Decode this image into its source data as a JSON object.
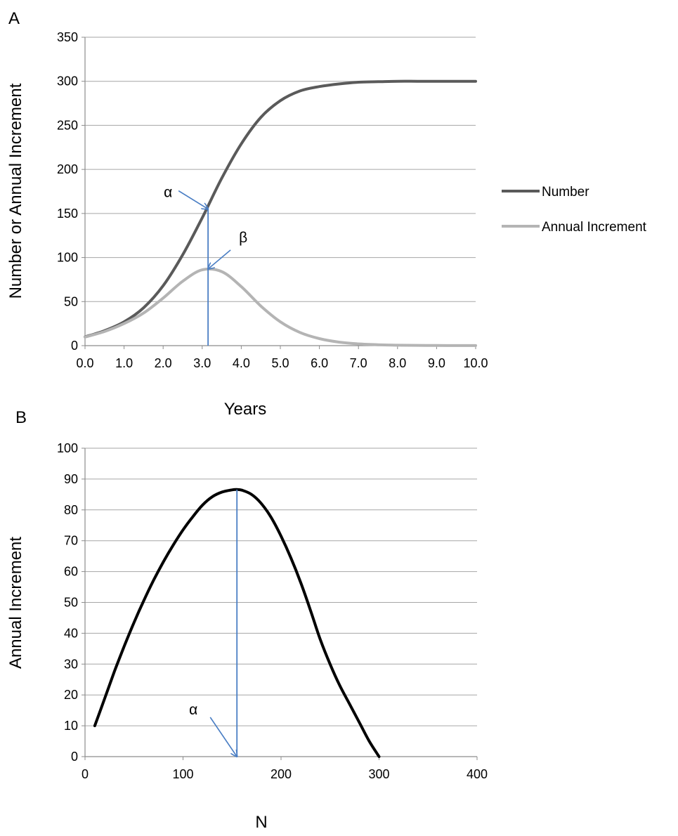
{
  "figure": {
    "panel_a_label": "A",
    "panel_b_label": "B"
  },
  "chart_data": [
    {
      "type": "line",
      "panel": "A",
      "xlabel": "Years",
      "ylabel": "Number or Annual Increment",
      "xlim": [
        0,
        10
      ],
      "ylim": [
        0,
        350
      ],
      "x_ticks": [
        "0.0",
        "1.0",
        "2.0",
        "3.0",
        "4.0",
        "5.0",
        "6.0",
        "7.0",
        "8.0",
        "9.0",
        "10.0"
      ],
      "y_ticks": [
        "0",
        "50",
        "100",
        "150",
        "200",
        "250",
        "300",
        "350"
      ],
      "grid": "horizontal",
      "legend_position": "right",
      "series": [
        {
          "name": "Number",
          "color": "#5a5a5a",
          "x": [
            0,
            0.5,
            1,
            1.5,
            2,
            2.5,
            3,
            3.5,
            4,
            4.5,
            5,
            5.5,
            6,
            6.5,
            7,
            7.5,
            8,
            8.5,
            9,
            9.5,
            10
          ],
          "y": [
            10,
            17,
            27,
            43,
            68,
            103,
            145,
            190,
            229,
            259,
            278,
            289,
            294,
            297,
            299,
            299.5,
            300,
            300,
            300,
            300,
            300
          ]
        },
        {
          "name": "Annual Increment",
          "color": "#b4b4b4",
          "x": [
            0,
            0.5,
            1,
            1.5,
            2,
            2.5,
            3,
            3.5,
            4,
            4.5,
            5,
            5.5,
            6,
            6.5,
            7,
            7.5,
            8,
            8.5,
            9,
            9.5,
            10
          ],
          "y": [
            9.7,
            16,
            25,
            37,
            54,
            73,
            86,
            84,
            67,
            45,
            27,
            15,
            8,
            4,
            2,
            1,
            0.5,
            0.3,
            0.2,
            0.1,
            0.1
          ]
        }
      ],
      "annotations": [
        {
          "label": "α",
          "x": 3.15,
          "y": 155
        },
        {
          "label": "β",
          "x": 3.15,
          "y": 87
        }
      ],
      "vertical_marker": {
        "x": 3.15,
        "y_from": 0,
        "y_to": 155,
        "color": "#4a7ec4"
      }
    },
    {
      "type": "line",
      "panel": "B",
      "xlabel": "N",
      "ylabel": "Annual Increment",
      "xlim": [
        0,
        400
      ],
      "ylim": [
        0,
        100
      ],
      "x_ticks": [
        "0",
        "100",
        "200",
        "300",
        "400"
      ],
      "y_ticks": [
        "0",
        "10",
        "20",
        "30",
        "40",
        "50",
        "60",
        "70",
        "80",
        "90",
        "100"
      ],
      "grid": "horizontal",
      "series": [
        {
          "color": "#000000",
          "x": [
            10,
            20,
            30,
            40,
            50,
            60,
            70,
            80,
            90,
            100,
            110,
            120,
            130,
            140,
            150,
            155,
            160,
            170,
            180,
            190,
            200,
            210,
            220,
            230,
            240,
            250,
            260,
            270,
            280,
            290,
            300
          ],
          "y": [
            10,
            18.8,
            27.6,
            35.8,
            43.5,
            50.6,
            57.2,
            63.2,
            68.6,
            73.5,
            77.8,
            81.6,
            84.3,
            85.8,
            86.5,
            86.6,
            86.4,
            85,
            82,
            77.5,
            71.5,
            64.5,
            56.5,
            47.5,
            38,
            30,
            23,
            17,
            11,
            5,
            0
          ]
        }
      ],
      "annotations": [
        {
          "label": "α",
          "x": 155,
          "y": 0
        }
      ],
      "vertical_marker": {
        "x": 155,
        "y_from": 0,
        "y_to": 86.6,
        "color": "#4a7ec4"
      }
    }
  ]
}
